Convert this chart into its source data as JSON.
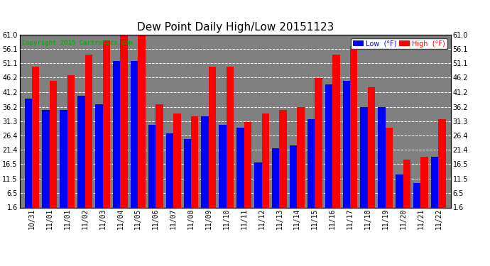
{
  "title": "Dew Point Daily High/Low 20151123",
  "copyright": "Copyright 2015 Cartronics.com",
  "dates": [
    "10/31",
    "11/01",
    "11/01",
    "11/02",
    "11/03",
    "11/04",
    "11/05",
    "11/06",
    "11/07",
    "11/08",
    "11/09",
    "11/10",
    "11/11",
    "11/12",
    "11/13",
    "11/14",
    "11/15",
    "11/16",
    "11/17",
    "11/18",
    "11/19",
    "11/20",
    "11/21",
    "11/22"
  ],
  "low_values": [
    39,
    35,
    35,
    40,
    37,
    52,
    52,
    30,
    27,
    25,
    33,
    30,
    29,
    17,
    22,
    23,
    32,
    44,
    45,
    36,
    36,
    13,
    10,
    19
  ],
  "high_values": [
    50,
    45,
    47,
    54,
    59,
    61,
    61,
    37,
    34,
    33,
    50,
    50,
    31,
    34,
    35,
    36,
    46,
    54,
    57,
    43,
    29,
    18,
    19,
    32
  ],
  "low_color": "#0000FF",
  "high_color": "#FF0000",
  "bg_color": "#FFFFFF",
  "plot_bg_color": "#808080",
  "grid_color": "#FFFFFF",
  "ylim": [
    1.6,
    61.0
  ],
  "yticks": [
    1.6,
    6.5,
    11.5,
    16.5,
    21.4,
    26.4,
    31.3,
    36.2,
    41.2,
    46.2,
    51.1,
    56.1,
    61.0
  ],
  "bar_width": 0.42,
  "title_fontsize": 11,
  "tick_fontsize": 7,
  "copyright_fontsize": 6.5,
  "legend_fontsize": 7
}
